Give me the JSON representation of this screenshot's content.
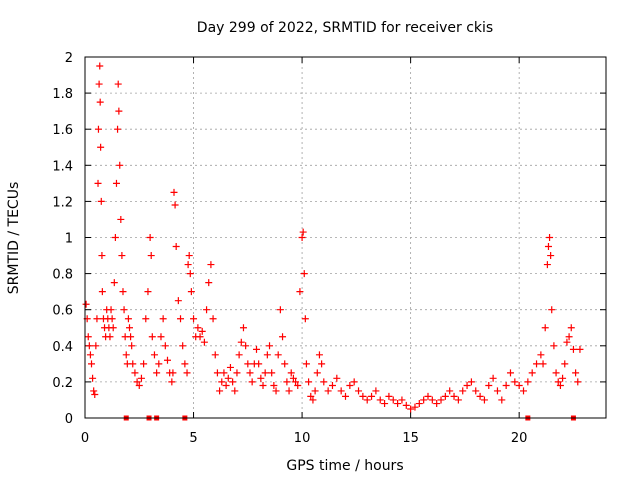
{
  "chart_data": {
    "type": "scatter",
    "title": "Day 299 of 2022, SRMTID for receiver ckis",
    "xlabel": "GPS time / hours",
    "ylabel": "SRMTID / TECUs",
    "xlim": [
      0,
      24
    ],
    "ylim": [
      0,
      2
    ],
    "x_ticks": [
      0,
      5,
      10,
      15,
      20
    ],
    "x_tick_labels": [
      "0",
      "5",
      "10",
      "15",
      "20"
    ],
    "y_ticks": [
      0,
      0.2,
      0.4,
      0.6,
      0.8,
      1,
      1.2,
      1.4,
      1.6,
      1.8,
      2
    ],
    "y_tick_labels": [
      "0",
      "0.2",
      "0.4",
      "0.6",
      "0.8",
      "1",
      "1.2",
      "1.4",
      "1.6",
      "1.8",
      "2"
    ],
    "grid": true,
    "marker": "+",
    "color": "#ff0000",
    "series": [
      {
        "name": "SRMTID",
        "points": [
          [
            0.05,
            0.63
          ],
          [
            0.1,
            0.55
          ],
          [
            0.15,
            0.45
          ],
          [
            0.2,
            0.4
          ],
          [
            0.25,
            0.35
          ],
          [
            0.3,
            0.3
          ],
          [
            0.35,
            0.22
          ],
          [
            0.4,
            0.15
          ],
          [
            0.45,
            0.13
          ],
          [
            0.5,
            0.4
          ],
          [
            0.55,
            0.55
          ],
          [
            0.6,
            1.3
          ],
          [
            0.62,
            1.6
          ],
          [
            0.65,
            1.85
          ],
          [
            0.68,
            1.95
          ],
          [
            0.7,
            1.75
          ],
          [
            0.72,
            1.5
          ],
          [
            0.75,
            1.2
          ],
          [
            0.78,
            0.9
          ],
          [
            0.8,
            0.7
          ],
          [
            0.85,
            0.55
          ],
          [
            0.9,
            0.5
          ],
          [
            0.95,
            0.45
          ],
          [
            1.0,
            0.6
          ],
          [
            1.05,
            0.55
          ],
          [
            1.1,
            0.5
          ],
          [
            1.15,
            0.45
          ],
          [
            1.2,
            0.6
          ],
          [
            1.25,
            0.55
          ],
          [
            1.3,
            0.5
          ],
          [
            1.35,
            0.75
          ],
          [
            1.4,
            1.0
          ],
          [
            1.45,
            1.3
          ],
          [
            1.5,
            1.6
          ],
          [
            1.53,
            1.85
          ],
          [
            1.56,
            1.7
          ],
          [
            1.6,
            1.4
          ],
          [
            1.65,
            1.1
          ],
          [
            1.7,
            0.9
          ],
          [
            1.75,
            0.7
          ],
          [
            1.8,
            0.6
          ],
          [
            1.85,
            0.45
          ],
          [
            1.9,
            0.35
          ],
          [
            1.95,
            0.3
          ],
          [
            2.0,
            0.55
          ],
          [
            2.05,
            0.5
          ],
          [
            2.1,
            0.45
          ],
          [
            2.15,
            0.4
          ],
          [
            2.2,
            0.3
          ],
          [
            2.3,
            0.25
          ],
          [
            2.4,
            0.2
          ],
          [
            2.5,
            0.18
          ],
          [
            2.6,
            0.22
          ],
          [
            2.7,
            0.3
          ],
          [
            2.8,
            0.55
          ],
          [
            2.9,
            0.7
          ],
          [
            3.0,
            1.0
          ],
          [
            3.05,
            0.9
          ],
          [
            3.1,
            0.45
          ],
          [
            3.2,
            0.35
          ],
          [
            3.3,
            0.25
          ],
          [
            3.4,
            0.3
          ],
          [
            3.5,
            0.45
          ],
          [
            3.6,
            0.55
          ],
          [
            3.7,
            0.4
          ],
          [
            3.8,
            0.32
          ],
          [
            3.9,
            0.25
          ],
          [
            4.0,
            0.2
          ],
          [
            4.05,
            0.25
          ],
          [
            4.1,
            1.25
          ],
          [
            4.15,
            1.18
          ],
          [
            4.2,
            0.95
          ],
          [
            4.3,
            0.65
          ],
          [
            4.4,
            0.55
          ],
          [
            4.5,
            0.4
          ],
          [
            4.6,
            0.3
          ],
          [
            4.7,
            0.25
          ],
          [
            4.75,
            0.85
          ],
          [
            4.8,
            0.9
          ],
          [
            4.85,
            0.8
          ],
          [
            4.9,
            0.7
          ],
          [
            5.0,
            0.55
          ],
          [
            5.1,
            0.45
          ],
          [
            5.2,
            0.5
          ],
          [
            5.3,
            0.45
          ],
          [
            5.4,
            0.48
          ],
          [
            5.5,
            0.42
          ],
          [
            5.6,
            0.6
          ],
          [
            5.7,
            0.75
          ],
          [
            5.8,
            0.85
          ],
          [
            5.9,
            0.55
          ],
          [
            6.0,
            0.35
          ],
          [
            6.1,
            0.25
          ],
          [
            6.2,
            0.15
          ],
          [
            6.3,
            0.2
          ],
          [
            6.4,
            0.25
          ],
          [
            6.5,
            0.18
          ],
          [
            6.6,
            0.22
          ],
          [
            6.7,
            0.28
          ],
          [
            6.8,
            0.2
          ],
          [
            6.9,
            0.15
          ],
          [
            7.0,
            0.25
          ],
          [
            7.1,
            0.35
          ],
          [
            7.2,
            0.42
          ],
          [
            7.3,
            0.5
          ],
          [
            7.4,
            0.4
          ],
          [
            7.5,
            0.3
          ],
          [
            7.6,
            0.25
          ],
          [
            7.7,
            0.2
          ],
          [
            7.8,
            0.3
          ],
          [
            7.9,
            0.38
          ],
          [
            8.0,
            0.3
          ],
          [
            8.1,
            0.22
          ],
          [
            8.2,
            0.18
          ],
          [
            8.3,
            0.25
          ],
          [
            8.4,
            0.35
          ],
          [
            8.5,
            0.4
          ],
          [
            8.6,
            0.25
          ],
          [
            8.7,
            0.18
          ],
          [
            8.8,
            0.15
          ],
          [
            8.9,
            0.35
          ],
          [
            9.0,
            0.6
          ],
          [
            9.1,
            0.45
          ],
          [
            9.2,
            0.3
          ],
          [
            9.3,
            0.2
          ],
          [
            9.4,
            0.15
          ],
          [
            9.5,
            0.25
          ],
          [
            9.6,
            0.22
          ],
          [
            9.7,
            0.2
          ],
          [
            9.8,
            0.18
          ],
          [
            9.9,
            0.7
          ],
          [
            10.0,
            1.0
          ],
          [
            10.05,
            1.03
          ],
          [
            10.1,
            0.8
          ],
          [
            10.15,
            0.55
          ],
          [
            10.2,
            0.3
          ],
          [
            10.3,
            0.2
          ],
          [
            10.4,
            0.12
          ],
          [
            10.5,
            0.1
          ],
          [
            10.6,
            0.15
          ],
          [
            10.7,
            0.25
          ],
          [
            10.8,
            0.35
          ],
          [
            10.9,
            0.3
          ],
          [
            11.0,
            0.2
          ],
          [
            11.2,
            0.15
          ],
          [
            11.4,
            0.18
          ],
          [
            11.6,
            0.22
          ],
          [
            11.8,
            0.15
          ],
          [
            12.0,
            0.12
          ],
          [
            12.2,
            0.18
          ],
          [
            12.4,
            0.2
          ],
          [
            12.6,
            0.15
          ],
          [
            12.8,
            0.12
          ],
          [
            13.0,
            0.1
          ],
          [
            13.2,
            0.12
          ],
          [
            13.4,
            0.15
          ],
          [
            13.6,
            0.1
          ],
          [
            13.8,
            0.08
          ],
          [
            14.0,
            0.12
          ],
          [
            14.2,
            0.1
          ],
          [
            14.4,
            0.08
          ],
          [
            14.6,
            0.1
          ],
          [
            14.8,
            0.07
          ],
          [
            15.0,
            0.05
          ],
          [
            15.2,
            0.06
          ],
          [
            15.4,
            0.08
          ],
          [
            15.6,
            0.1
          ],
          [
            15.8,
            0.12
          ],
          [
            16.0,
            0.1
          ],
          [
            16.2,
            0.08
          ],
          [
            16.4,
            0.1
          ],
          [
            16.6,
            0.12
          ],
          [
            16.8,
            0.15
          ],
          [
            17.0,
            0.12
          ],
          [
            17.2,
            0.1
          ],
          [
            17.4,
            0.15
          ],
          [
            17.6,
            0.18
          ],
          [
            17.8,
            0.2
          ],
          [
            18.0,
            0.15
          ],
          [
            18.2,
            0.12
          ],
          [
            18.4,
            0.1
          ],
          [
            18.6,
            0.18
          ],
          [
            18.8,
            0.22
          ],
          [
            19.0,
            0.15
          ],
          [
            19.2,
            0.1
          ],
          [
            19.4,
            0.18
          ],
          [
            19.6,
            0.25
          ],
          [
            19.8,
            0.2
          ],
          [
            20.0,
            0.18
          ],
          [
            20.2,
            0.15
          ],
          [
            20.4,
            0.2
          ],
          [
            20.6,
            0.25
          ],
          [
            20.8,
            0.3
          ],
          [
            21.0,
            0.35
          ],
          [
            21.1,
            0.3
          ],
          [
            21.2,
            0.5
          ],
          [
            21.3,
            0.85
          ],
          [
            21.35,
            0.95
          ],
          [
            21.4,
            1.0
          ],
          [
            21.45,
            0.9
          ],
          [
            21.5,
            0.6
          ],
          [
            21.6,
            0.4
          ],
          [
            21.7,
            0.25
          ],
          [
            21.8,
            0.2
          ],
          [
            21.9,
            0.18
          ],
          [
            22.0,
            0.22
          ],
          [
            22.1,
            0.3
          ],
          [
            22.2,
            0.42
          ],
          [
            22.3,
            0.45
          ],
          [
            22.4,
            0.5
          ],
          [
            22.5,
            0.38
          ],
          [
            22.6,
            0.25
          ],
          [
            22.7,
            0.2
          ],
          [
            22.8,
            0.38
          ]
        ]
      }
    ],
    "gap_markers_x": [
      1.9,
      2.95,
      3.3,
      4.6,
      20.4,
      22.5
    ]
  }
}
